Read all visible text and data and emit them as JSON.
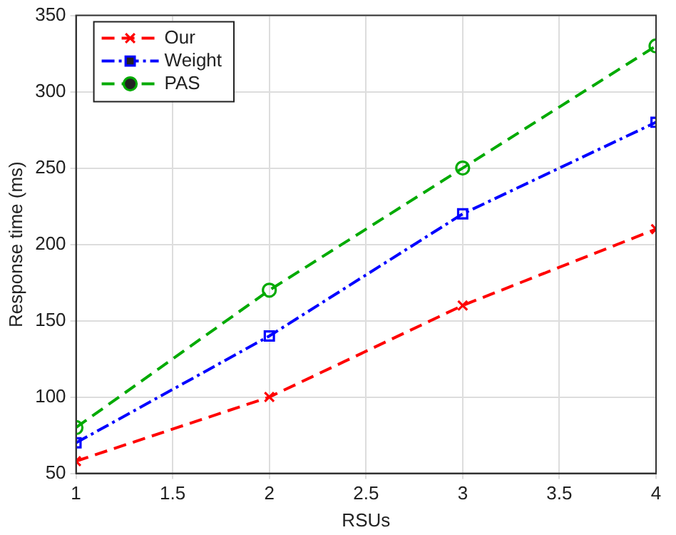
{
  "chart_data": {
    "type": "line",
    "xlabel": "RSUs",
    "ylabel": "Response time (ms)",
    "x": [
      1,
      2,
      3,
      4
    ],
    "series": [
      {
        "name": "Our",
        "color": "#ff0000",
        "values": [
          58,
          100,
          160,
          210
        ],
        "marker": "cross",
        "line_style": "dashed"
      },
      {
        "name": "Weight",
        "color": "#0000ff",
        "values": [
          70,
          140,
          220,
          280
        ],
        "marker": "square",
        "line_style": "dashdot"
      },
      {
        "name": "PAS",
        "color": "#00aa00",
        "values": [
          80,
          170,
          250,
          330
        ],
        "marker": "circle",
        "line_style": "dashed"
      }
    ],
    "xlim": [
      1,
      4
    ],
    "xticks": [
      1,
      1.5,
      2,
      2.5,
      3,
      3.5,
      4
    ],
    "ylim": [
      50,
      350
    ],
    "yticks": [
      50,
      100,
      150,
      200,
      250,
      300,
      350
    ],
    "grid": true,
    "legend": "top left"
  }
}
